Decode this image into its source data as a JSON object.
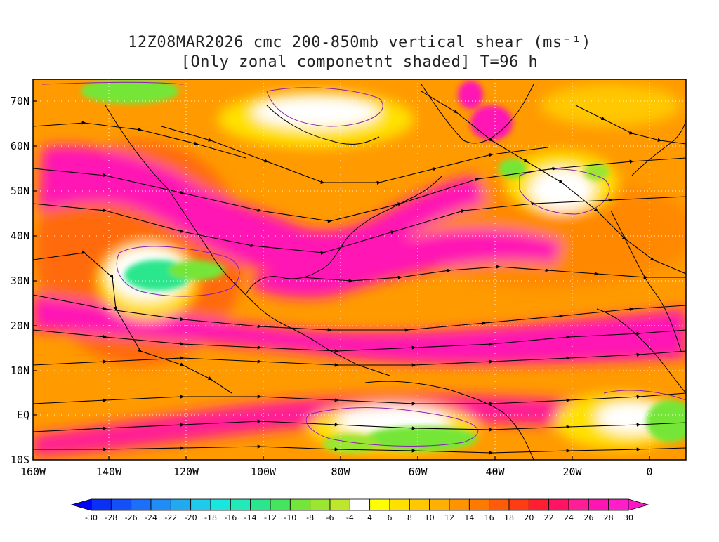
{
  "title": {
    "line1": "12Z08MAR2026 cmc 200-850mb vertical shear (ms⁻¹)",
    "line2": "[Only zonal componetnt shaded] T=96 h"
  },
  "map": {
    "lat_labels": [
      "70N",
      "60N",
      "50N",
      "40N",
      "30N",
      "20N",
      "10N",
      "EQ",
      "10S"
    ],
    "lon_labels": [
      "160W",
      "140W",
      "120W",
      "100W",
      "80W",
      "60W",
      "40W",
      "20W",
      "0"
    ]
  },
  "colorbar": {
    "labels": [
      "-30",
      "-28",
      "-26",
      "-24",
      "-22",
      "-20",
      "-18",
      "-16",
      "-14",
      "-12",
      "-10",
      "-8",
      "-6",
      "-4",
      "4",
      "6",
      "8",
      "10",
      "12",
      "14",
      "16",
      "18",
      "20",
      "22",
      "24",
      "26",
      "28",
      "30"
    ],
    "colors": [
      "#0a2ff5",
      "#1450fa",
      "#1c6ff9",
      "#1f8df5",
      "#22aaf0",
      "#1fcbea",
      "#19e6dd",
      "#22eab8",
      "#2ae68c",
      "#45e65e",
      "#74e639",
      "#9ae630",
      "#bde62c",
      "#ffffff",
      "#ffff00",
      "#ffe100",
      "#ffc800",
      "#ffb000",
      "#ff9400",
      "#ff7a00",
      "#ff5c0a",
      "#ff3c14",
      "#ff1e32",
      "#ff1464",
      "#ff1e96",
      "#ff14b4",
      "#ff1ec8"
    ],
    "under_color": "#0000ff",
    "over_color": "#ff14c8"
  }
}
